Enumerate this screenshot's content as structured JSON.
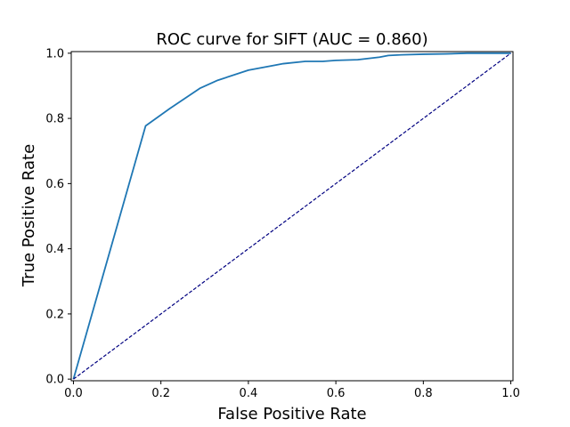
{
  "chart_data": {
    "type": "line",
    "title": "ROC curve for SIFT (AUC = 0.860)",
    "xlabel": "False Positive Rate",
    "ylabel": "True Positive Rate",
    "xlim": [
      -0.005,
      1.005
    ],
    "ylim": [
      -0.005,
      1.005
    ],
    "grid": false,
    "xticks": [
      0.0,
      0.2,
      0.4,
      0.6,
      0.8,
      1.0
    ],
    "yticks": [
      0.0,
      0.2,
      0.4,
      0.6,
      0.8,
      1.0
    ],
    "xtick_labels": [
      "0.0",
      "0.2",
      "0.4",
      "0.6",
      "0.8",
      "1.0"
    ],
    "ytick_labels": [
      "0.0",
      "0.2",
      "0.4",
      "0.6",
      "0.8",
      "1.0"
    ],
    "series": [
      {
        "color": "#1f77b4",
        "style": "solid",
        "x": [
          0.0,
          0.165,
          0.22,
          0.29,
          0.33,
          0.4,
          0.46,
          0.48,
          0.53,
          0.57,
          0.6,
          0.65,
          0.7,
          0.72,
          0.75,
          0.8,
          0.85,
          0.9,
          1.0
        ],
        "y": [
          0.0,
          0.777,
          0.83,
          0.893,
          0.917,
          0.948,
          0.963,
          0.968,
          0.975,
          0.975,
          0.978,
          0.98,
          0.988,
          0.993,
          0.995,
          0.997,
          0.998,
          1.0,
          1.0
        ]
      },
      {
        "color": "#000080",
        "style": "dashed",
        "x": [
          0.0,
          1.0
        ],
        "y": [
          0.0,
          1.0
        ]
      }
    ]
  }
}
